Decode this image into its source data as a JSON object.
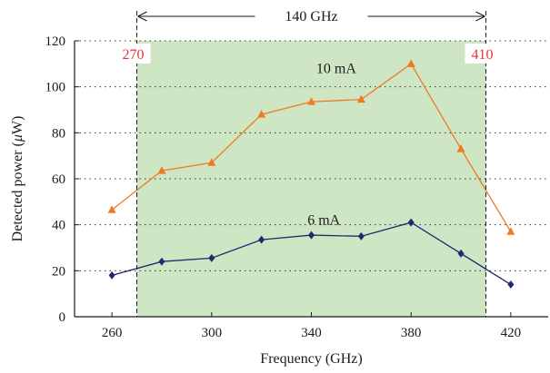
{
  "chart_data": {
    "type": "line",
    "xlabel": "Frequency (GHz)",
    "ylabel_prefix": "Detected power (",
    "ylabel_mu": "μ",
    "ylabel_suffix": "W)",
    "x_ticks": [
      "260",
      "300",
      "340",
      "380",
      "420"
    ],
    "y_ticks": [
      "0",
      "20",
      "40",
      "60",
      "80",
      "100",
      "120"
    ],
    "xlim": [
      245,
      435
    ],
    "ylim": [
      0,
      120
    ],
    "grid": "horizontal dotted",
    "series": [
      {
        "name": "10 mA",
        "color": "#f07a23",
        "marker": "triangle",
        "x": [
          260,
          280,
          300,
          320,
          340,
          360,
          380,
          400,
          420
        ],
        "y": [
          46.5,
          63.5,
          67,
          88,
          93.5,
          94.5,
          110,
          73,
          37
        ]
      },
      {
        "name": "6 mA",
        "color": "#1f2a6e",
        "marker": "diamond",
        "x": [
          260,
          280,
          300,
          320,
          340,
          360,
          380,
          400,
          420
        ],
        "y": [
          18,
          24,
          25.5,
          33.5,
          35.5,
          35,
          41,
          27.5,
          14
        ]
      }
    ],
    "annotations": {
      "band_start": "270",
      "band_end": "410",
      "band_start_value": 270,
      "band_end_value": 410,
      "bandwidth": "140 GHz",
      "band_color": "#cfe6c4",
      "marker_label_color": "#e8313c"
    }
  }
}
